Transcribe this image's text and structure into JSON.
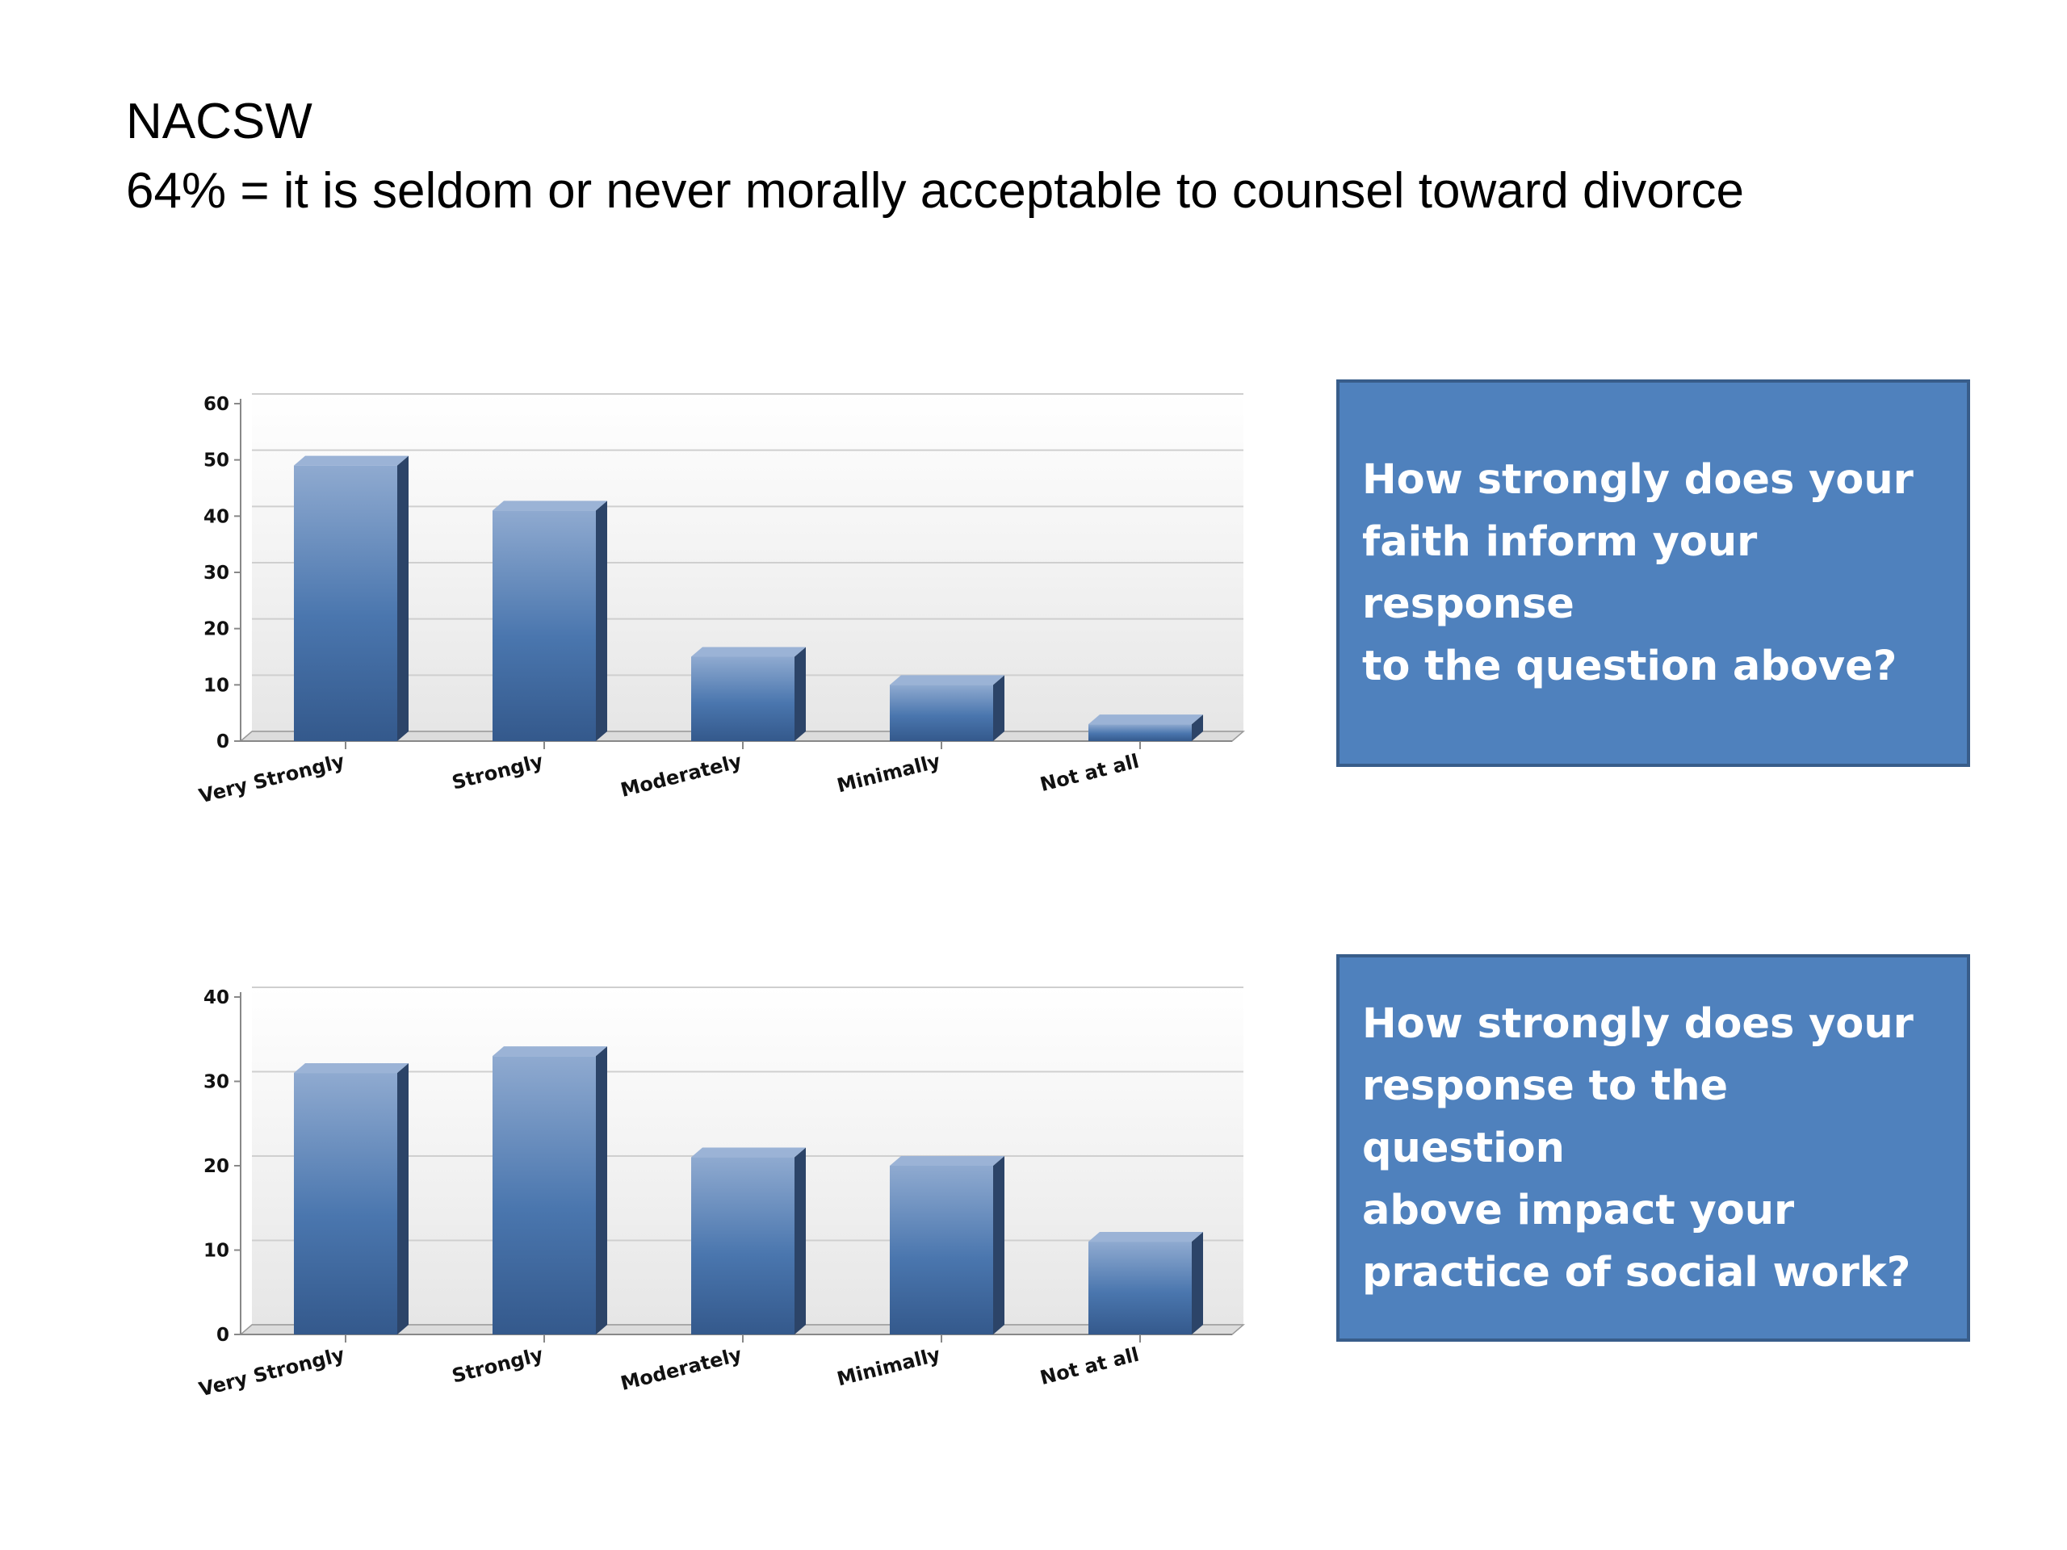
{
  "slide": {
    "title_line1": "NACSW",
    "title_line2": "64% = it is seldom or never morally acceptable to counsel toward divorce"
  },
  "questions": [
    {
      "lines": [
        "How strongly does your",
        "faith inform your response",
        "to the question above?"
      ]
    },
    {
      "lines": [
        "How strongly does your",
        "response to the question",
        "above impact your",
        "practice of social work?"
      ]
    }
  ],
  "colors": {
    "bar_face": "#4f7cb4",
    "bar_side": "#2c4468",
    "box_fill": "#4f81bd",
    "box_border": "#385d8a"
  },
  "chart_data": [
    {
      "type": "bar",
      "categories": [
        "Very Strongly",
        "Strongly",
        "Moderately",
        "Minimally",
        "Not at all"
      ],
      "values": [
        49,
        41,
        15,
        10,
        3
      ],
      "ylim": [
        0,
        60
      ],
      "yticks": [
        0,
        10,
        20,
        30,
        40,
        50,
        60
      ],
      "grid": true,
      "style": "3d"
    },
    {
      "type": "bar",
      "categories": [
        "Very Strongly",
        "Strongly",
        "Moderately",
        "Minimally",
        "Not at all"
      ],
      "values": [
        31,
        33,
        21,
        20,
        11
      ],
      "ylim": [
        0,
        40
      ],
      "yticks": [
        0,
        10,
        20,
        30,
        40
      ],
      "grid": true,
      "style": "3d"
    }
  ]
}
